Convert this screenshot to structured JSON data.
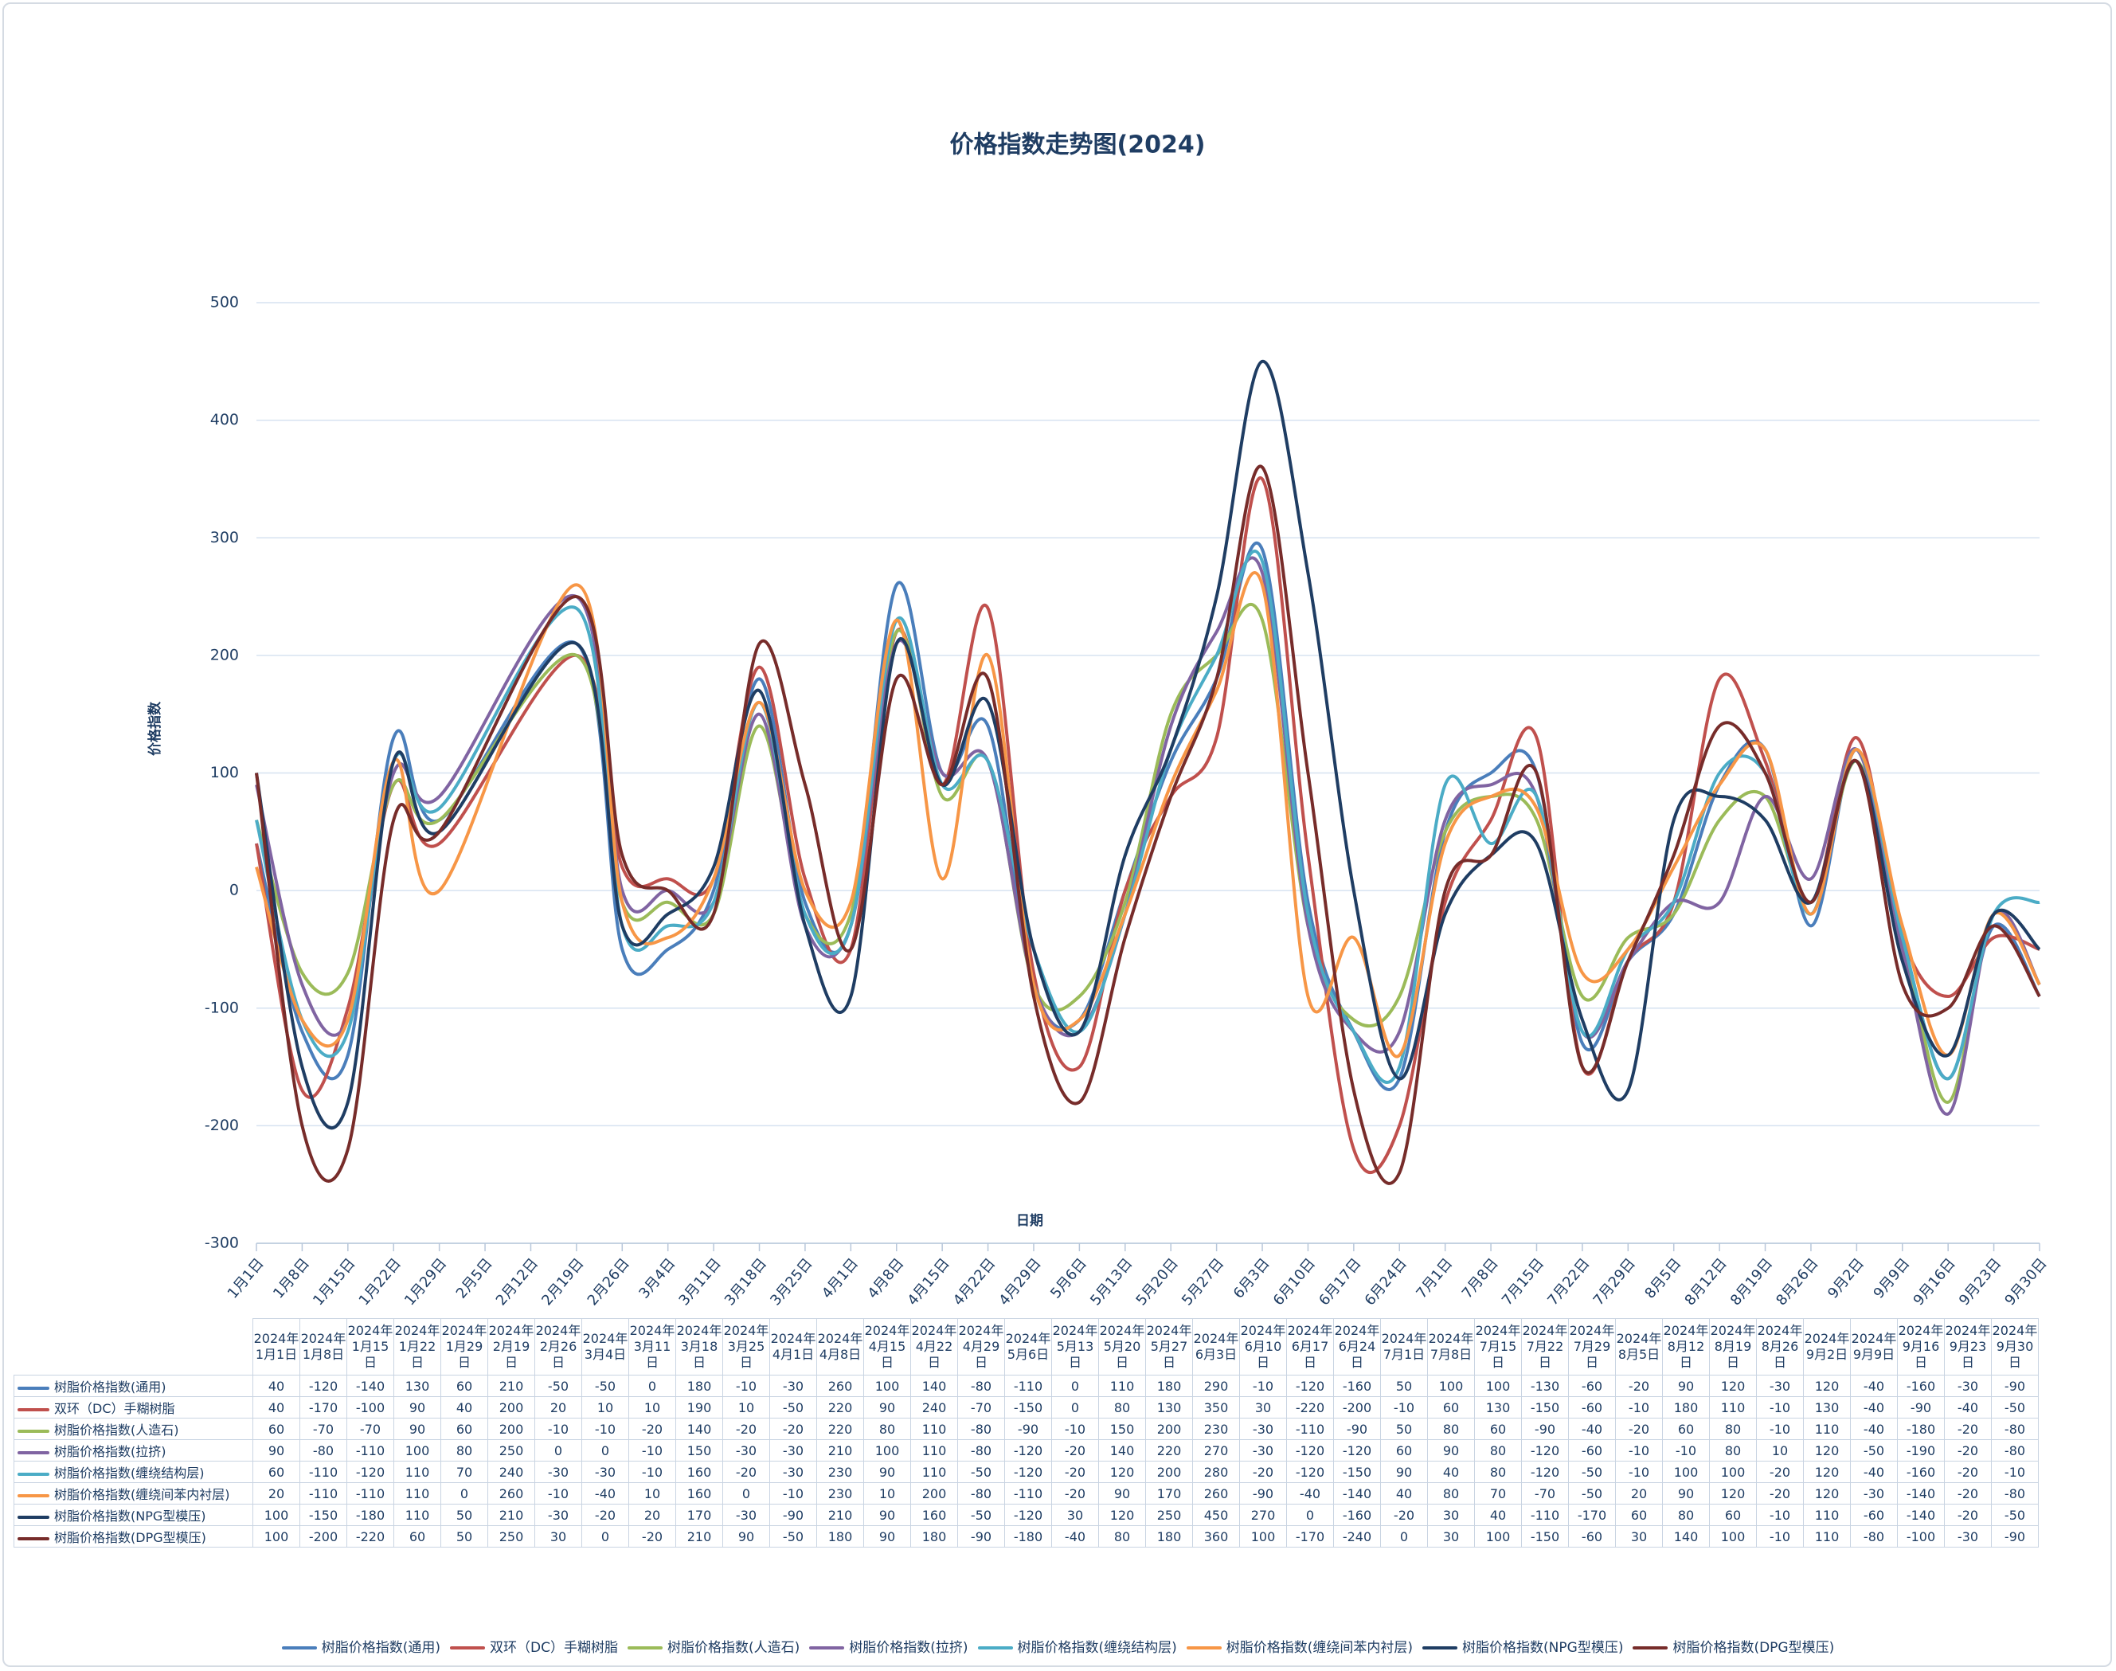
{
  "chart_data": {
    "type": "line",
    "title": "价格指数走势图(2024)",
    "x_label": "日期",
    "y_label": "价格指数",
    "x": [
      "2024年1月1日",
      "2024年1月8日",
      "2024年1月15日",
      "2024年1月22日",
      "2024年1月29日",
      "2024年2月19日",
      "2024年2月26日",
      "2024年3月4日",
      "2024年3月11日",
      "2024年3月18日",
      "2024年3月25日",
      "2024年4月1日",
      "2024年4月8日",
      "2024年4月15日",
      "2024年4月22日",
      "2024年4月29日",
      "2024年5月6日",
      "2024年5月13日",
      "2024年5月20日",
      "2024年5月27日",
      "2024年6月3日",
      "2024年6月10日",
      "2024年6月17日",
      "2024年6月24日",
      "2024年7月1日",
      "2024年7月8日",
      "2024年7月15日",
      "2024年7月22日",
      "2024年7月29日",
      "2024年8月5日",
      "2024年8月12日",
      "2024年8月19日",
      "2024年8月26日",
      "2024年9月2日",
      "2024年9月9日",
      "2024年9月16日",
      "2024年9月23日",
      "2024年9月30日"
    ],
    "xlim": [
      "2024年1月1日",
      "2024年9月30日"
    ],
    "xticks": [
      {
        "value": "2024年1月1日",
        "label": "1月1日"
      },
      {
        "value": "2024年1月8日",
        "label": "1月8日"
      },
      {
        "value": "2024年1月15日",
        "label": "1月15日"
      },
      {
        "value": "2024年1月22日",
        "label": "1月22日"
      },
      {
        "value": "2024年1月29日",
        "label": "1月29日"
      },
      {
        "value": "2024年2月5日",
        "label": "2月5日"
      },
      {
        "value": "2024年2月12日",
        "label": "2月12日"
      },
      {
        "value": "2024年2月19日",
        "label": "2月19日"
      },
      {
        "value": "2024年2月26日",
        "label": "2月26日"
      },
      {
        "value": "2024年3月4日",
        "label": "3月4日"
      },
      {
        "value": "2024年3月11日",
        "label": "3月11日"
      },
      {
        "value": "2024年3月18日",
        "label": "3月18日"
      },
      {
        "value": "2024年3月25日",
        "label": "3月25日"
      },
      {
        "value": "2024年4月1日",
        "label": "4月1日"
      },
      {
        "value": "2024年4月8日",
        "label": "4月8日"
      },
      {
        "value": "2024年4月15日",
        "label": "4月15日"
      },
      {
        "value": "2024年4月22日",
        "label": "4月22日"
      },
      {
        "value": "2024年4月29日",
        "label": "4月29日"
      },
      {
        "value": "2024年5月6日",
        "label": "5月6日"
      },
      {
        "value": "2024年5月13日",
        "label": "5月13日"
      },
      {
        "value": "2024年5月20日",
        "label": "5月20日"
      },
      {
        "value": "2024年5月27日",
        "label": "5月27日"
      },
      {
        "value": "2024年6月3日",
        "label": "6月3日"
      },
      {
        "value": "2024年6月10日",
        "label": "6月10日"
      },
      {
        "value": "2024年6月17日",
        "label": "6月17日"
      },
      {
        "value": "2024年6月24日",
        "label": "6月24日"
      },
      {
        "value": "2024年7月1日",
        "label": "7月1日"
      },
      {
        "value": "2024年7月8日",
        "label": "7月8日"
      },
      {
        "value": "2024年7月15日",
        "label": "7月15日"
      },
      {
        "value": "2024年7月22日",
        "label": "7月22日"
      },
      {
        "value": "2024年7月29日",
        "label": "7月29日"
      },
      {
        "value": "2024年8月5日",
        "label": "8月5日"
      },
      {
        "value": "2024年8月12日",
        "label": "8月12日"
      },
      {
        "value": "2024年8月19日",
        "label": "8月19日"
      },
      {
        "value": "2024年8月26日",
        "label": "8月26日"
      },
      {
        "value": "2024年9月2日",
        "label": "9月2日"
      },
      {
        "value": "2024年9月9日",
        "label": "9月9日"
      },
      {
        "value": "2024年9月16日",
        "label": "9月16日"
      },
      {
        "value": "2024年9月23日",
        "label": "9月23日"
      },
      {
        "value": "2024年9月30日",
        "label": "9月30日"
      }
    ],
    "ylim": [
      -300,
      500
    ],
    "yticks": [
      -300,
      -200,
      -100,
      0,
      100,
      200,
      300,
      400,
      500
    ],
    "grid": true,
    "legend": "bottom",
    "series": [
      {
        "name": "树脂价格指数(通用)",
        "color": "#4a7ebb",
        "values": [
          40,
          -120,
          -140,
          130,
          60,
          210,
          -50,
          -50,
          0,
          180,
          -10,
          -30,
          260,
          100,
          140,
          -80,
          -110,
          0,
          110,
          180,
          290,
          -10,
          -120,
          -160,
          50,
          100,
          100,
          -130,
          -60,
          -20,
          90,
          120,
          -30,
          120,
          -40,
          -160,
          -30,
          -90
        ]
      },
      {
        "name": "双环（DC）手糊树脂",
        "color": "#c0504d",
        "values": [
          40,
          -170,
          -100,
          90,
          40,
          200,
          20,
          10,
          10,
          190,
          10,
          -50,
          220,
          90,
          240,
          -70,
          -150,
          0,
          80,
          130,
          350,
          30,
          -220,
          -200,
          -10,
          60,
          130,
          -150,
          -60,
          -10,
          180,
          110,
          -10,
          130,
          -40,
          -90,
          -40,
          -50
        ]
      },
      {
        "name": "树脂价格指数(人造石)",
        "color": "#9bbb59",
        "values": [
          60,
          -70,
          -70,
          90,
          60,
          200,
          -10,
          -10,
          -20,
          140,
          -20,
          -20,
          220,
          80,
          110,
          -80,
          -90,
          -10,
          150,
          200,
          230,
          -30,
          -110,
          -90,
          50,
          80,
          60,
          -90,
          -40,
          -20,
          60,
          80,
          -10,
          110,
          -40,
          -180,
          -20,
          -80
        ]
      },
      {
        "name": "树脂价格指数(拉挤)",
        "color": "#8064a2",
        "values": [
          90,
          -80,
          -110,
          100,
          80,
          250,
          0,
          0,
          -10,
          150,
          -30,
          -30,
          210,
          100,
          110,
          -80,
          -120,
          -20,
          140,
          220,
          270,
          -30,
          -120,
          -120,
          60,
          90,
          80,
          -120,
          -60,
          -10,
          -10,
          80,
          10,
          120,
          -50,
          -190,
          -20,
          -80
        ]
      },
      {
        "name": "树脂价格指数(缠绕结构层)",
        "color": "#4bacc6",
        "values": [
          60,
          -110,
          -120,
          110,
          70,
          240,
          -30,
          -30,
          -10,
          160,
          -20,
          -30,
          230,
          90,
          110,
          -50,
          -120,
          -20,
          120,
          200,
          280,
          -20,
          -120,
          -150,
          90,
          40,
          80,
          -120,
          -50,
          -10,
          100,
          100,
          -20,
          120,
          -40,
          -160,
          -20,
          -10
        ]
      },
      {
        "name": "树脂价格指数(缠绕间苯内衬层)",
        "color": "#f79646",
        "values": [
          20,
          -110,
          -110,
          110,
          0,
          260,
          -10,
          -40,
          10,
          160,
          0,
          -10,
          230,
          10,
          200,
          -80,
          -110,
          -20,
          90,
          170,
          260,
          -90,
          -40,
          -140,
          40,
          80,
          70,
          -70,
          -50,
          20,
          90,
          120,
          -20,
          120,
          -30,
          -140,
          -20,
          -80
        ]
      },
      {
        "name": "树脂价格指数(NPG型模压)",
        "color": "#1f3d63",
        "values": [
          100,
          -150,
          -180,
          110,
          50,
          210,
          -30,
          -20,
          20,
          170,
          -30,
          -90,
          210,
          90,
          160,
          -50,
          -120,
          30,
          120,
          250,
          450,
          270,
          0,
          -160,
          -20,
          30,
          40,
          -110,
          -170,
          60,
          80,
          60,
          -10,
          110,
          -60,
          -140,
          -20,
          -50
        ]
      },
      {
        "name": "树脂价格指数(DPG型模压)",
        "color": "#772c2a",
        "values": [
          100,
          -200,
          -220,
          60,
          50,
          250,
          30,
          0,
          -20,
          210,
          90,
          -50,
          180,
          90,
          180,
          -90,
          -180,
          -40,
          80,
          180,
          360,
          100,
          -170,
          -240,
          0,
          30,
          100,
          -150,
          -60,
          30,
          140,
          100,
          -10,
          110,
          -80,
          -100,
          -30,
          -90
        ]
      }
    ]
  }
}
